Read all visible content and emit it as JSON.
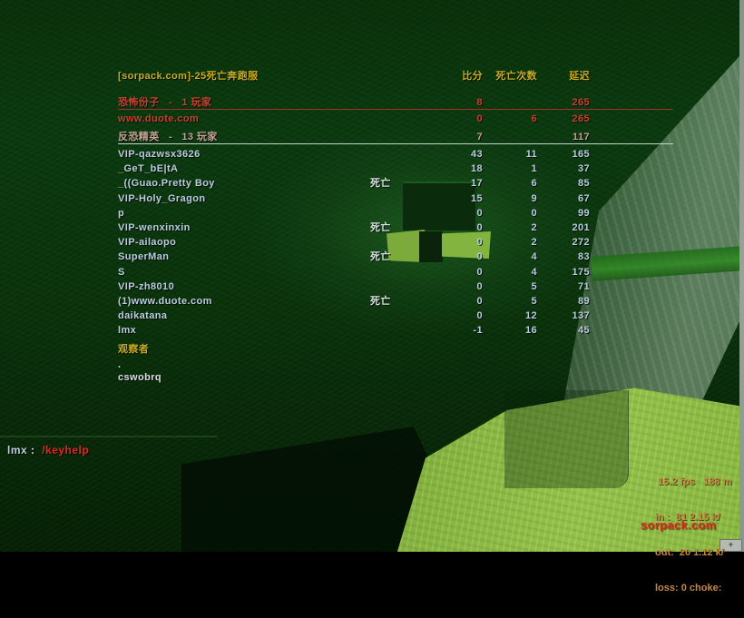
{
  "colors": {
    "hud_yellow": "#c9ab20",
    "t_red": "#c8402e",
    "ct_header": "#c7a198",
    "player_blue": "#b9cede",
    "white": "#d8e0e0",
    "chat_red": "#dd2a20",
    "netgraph_orange": "#c8873f",
    "watermark_red": "#e02a18",
    "t_line": "#a03028",
    "ct_line": "#c8d4d4"
  },
  "scoreboard": {
    "title": "[sorpack.com]-25死亡奔跑服",
    "columns": {
      "score": "比分",
      "deaths": "死亡次数",
      "latency": "延迟"
    },
    "dead_label": "死亡",
    "teams": [
      {
        "header": "恐怖份子   -   1 玩家",
        "score": "8",
        "deaths": "",
        "latency": "265",
        "style": "t",
        "players": [
          {
            "name": "www.duote.com",
            "dead": false,
            "score": "0",
            "deaths": "6",
            "latency": "265"
          }
        ]
      },
      {
        "header": "反恐精英   -   13 玩家",
        "score": "7",
        "deaths": "",
        "latency": "117",
        "style": "ct",
        "players": [
          {
            "name": "VIP-qazwsx3626",
            "dead": false,
            "score": "43",
            "deaths": "11",
            "latency": "165"
          },
          {
            "name": "_GeT_bE|tA",
            "dead": false,
            "score": "18",
            "deaths": "1",
            "latency": "37"
          },
          {
            "name": "_((Guao.Pretty Boy",
            "dead": true,
            "score": "17",
            "deaths": "6",
            "latency": "85"
          },
          {
            "name": "VIP-Holy_Gragon",
            "dead": false,
            "score": "15",
            "deaths": "9",
            "latency": "67"
          },
          {
            "name": "p",
            "dead": false,
            "score": "0",
            "deaths": "0",
            "latency": "99"
          },
          {
            "name": "VIP-wenxinxin",
            "dead": true,
            "score": "0",
            "deaths": "2",
            "latency": "201"
          },
          {
            "name": "VIP-ailaopo",
            "dead": false,
            "score": "0",
            "deaths": "2",
            "latency": "272"
          },
          {
            "name": "SuperMan",
            "dead": true,
            "score": "0",
            "deaths": "4",
            "latency": "83"
          },
          {
            "name": "S",
            "dead": false,
            "score": "0",
            "deaths": "4",
            "latency": "175"
          },
          {
            "name": "VIP-zh8010",
            "dead": false,
            "score": "0",
            "deaths": "5",
            "latency": "71"
          },
          {
            "name": "(1)www.duote.com",
            "dead": true,
            "score": "0",
            "deaths": "5",
            "latency": "89"
          },
          {
            "name": "daikatana",
            "dead": false,
            "score": "0",
            "deaths": "12",
            "latency": "137"
          },
          {
            "name": "lmx",
            "dead": false,
            "score": "-1",
            "deaths": "16",
            "latency": "45"
          }
        ]
      }
    ],
    "spectators": {
      "header": "观察者",
      "names": [
        ".",
        "cswobrq"
      ]
    }
  },
  "chat": {
    "speaker": "lmx",
    "separator": " :  ",
    "message": "/keyhelp"
  },
  "netgraph": {
    "lines": [
      " 15.2 fps   188 m",
      "in :  81 2.15 k/",
      "out:  20 1.12 k/",
      "loss: 0 choke:"
    ]
  },
  "watermark": {
    "text": "sorpack.com"
  },
  "ui": {
    "corner_glyph": "+"
  }
}
